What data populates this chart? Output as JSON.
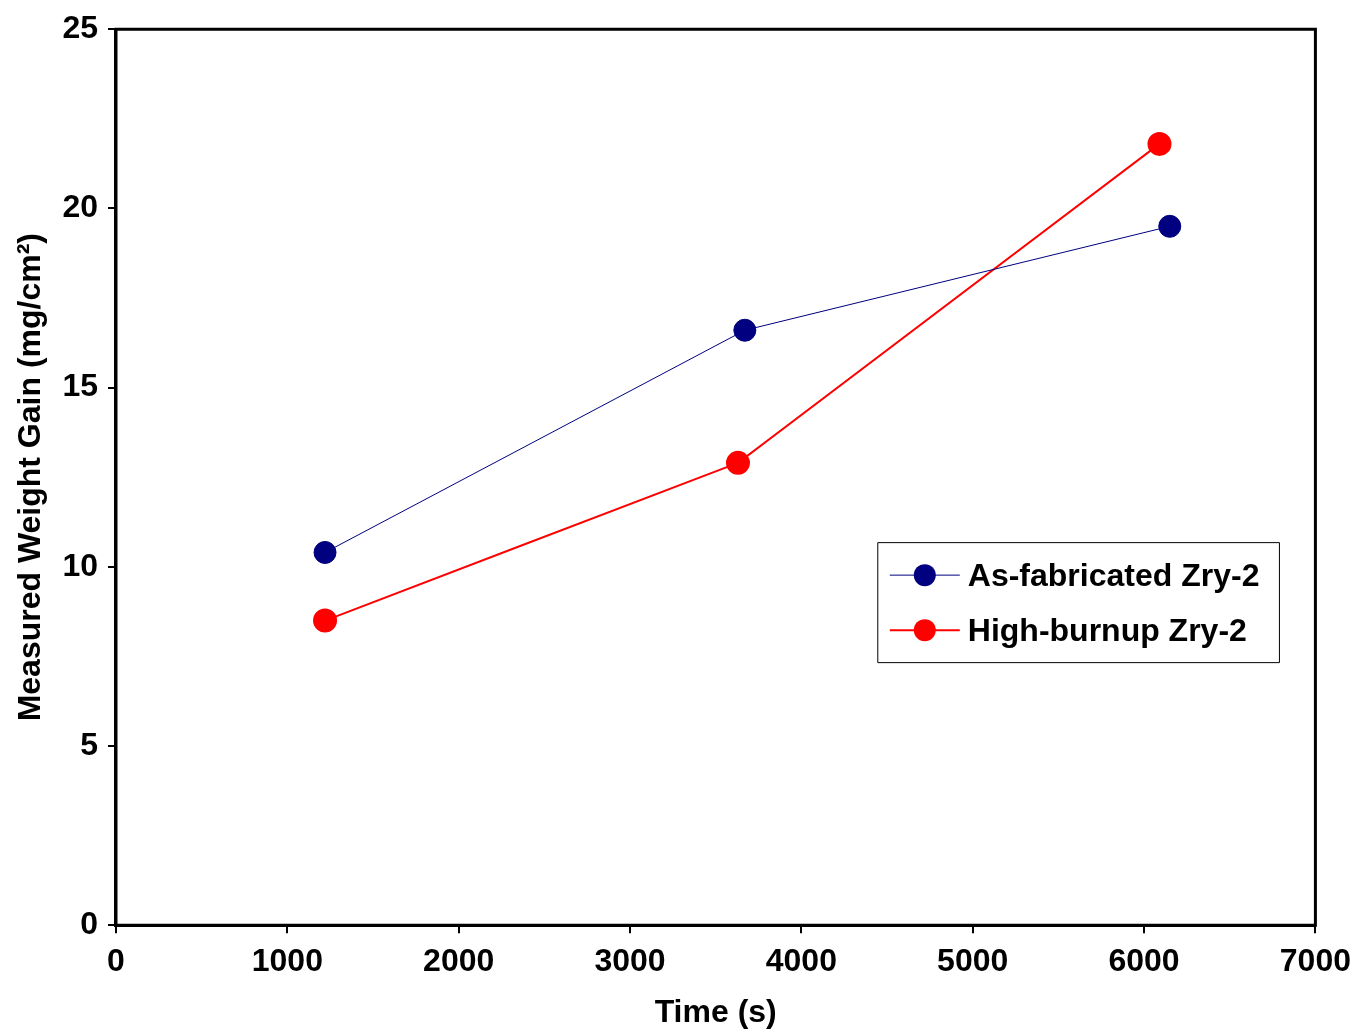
{
  "chart_data": {
    "type": "line",
    "xlabel": "Time (s)",
    "ylabel": "Measured Weight Gain (mg/cm²)",
    "xlim": [
      0,
      7000
    ],
    "xticks": [
      0,
      1000,
      2000,
      3000,
      4000,
      5000,
      6000,
      7000
    ],
    "ylim": [
      0,
      25
    ],
    "yticks": [
      0,
      5,
      10,
      15,
      20,
      25
    ],
    "grid": false,
    "legend": "right",
    "marker": "circle",
    "line_style": "solid",
    "series": [
      {
        "name": "As-fabricated Zry-2",
        "color": "#000080",
        "x": [
          1220,
          3670,
          6150
        ],
        "values": [
          10.4,
          16.6,
          19.5
        ]
      },
      {
        "name": "High-burnup Zry-2",
        "color": "#ff0000",
        "x": [
          1220,
          3630,
          6090
        ],
        "values": [
          8.5,
          12.9,
          21.8
        ]
      }
    ]
  }
}
